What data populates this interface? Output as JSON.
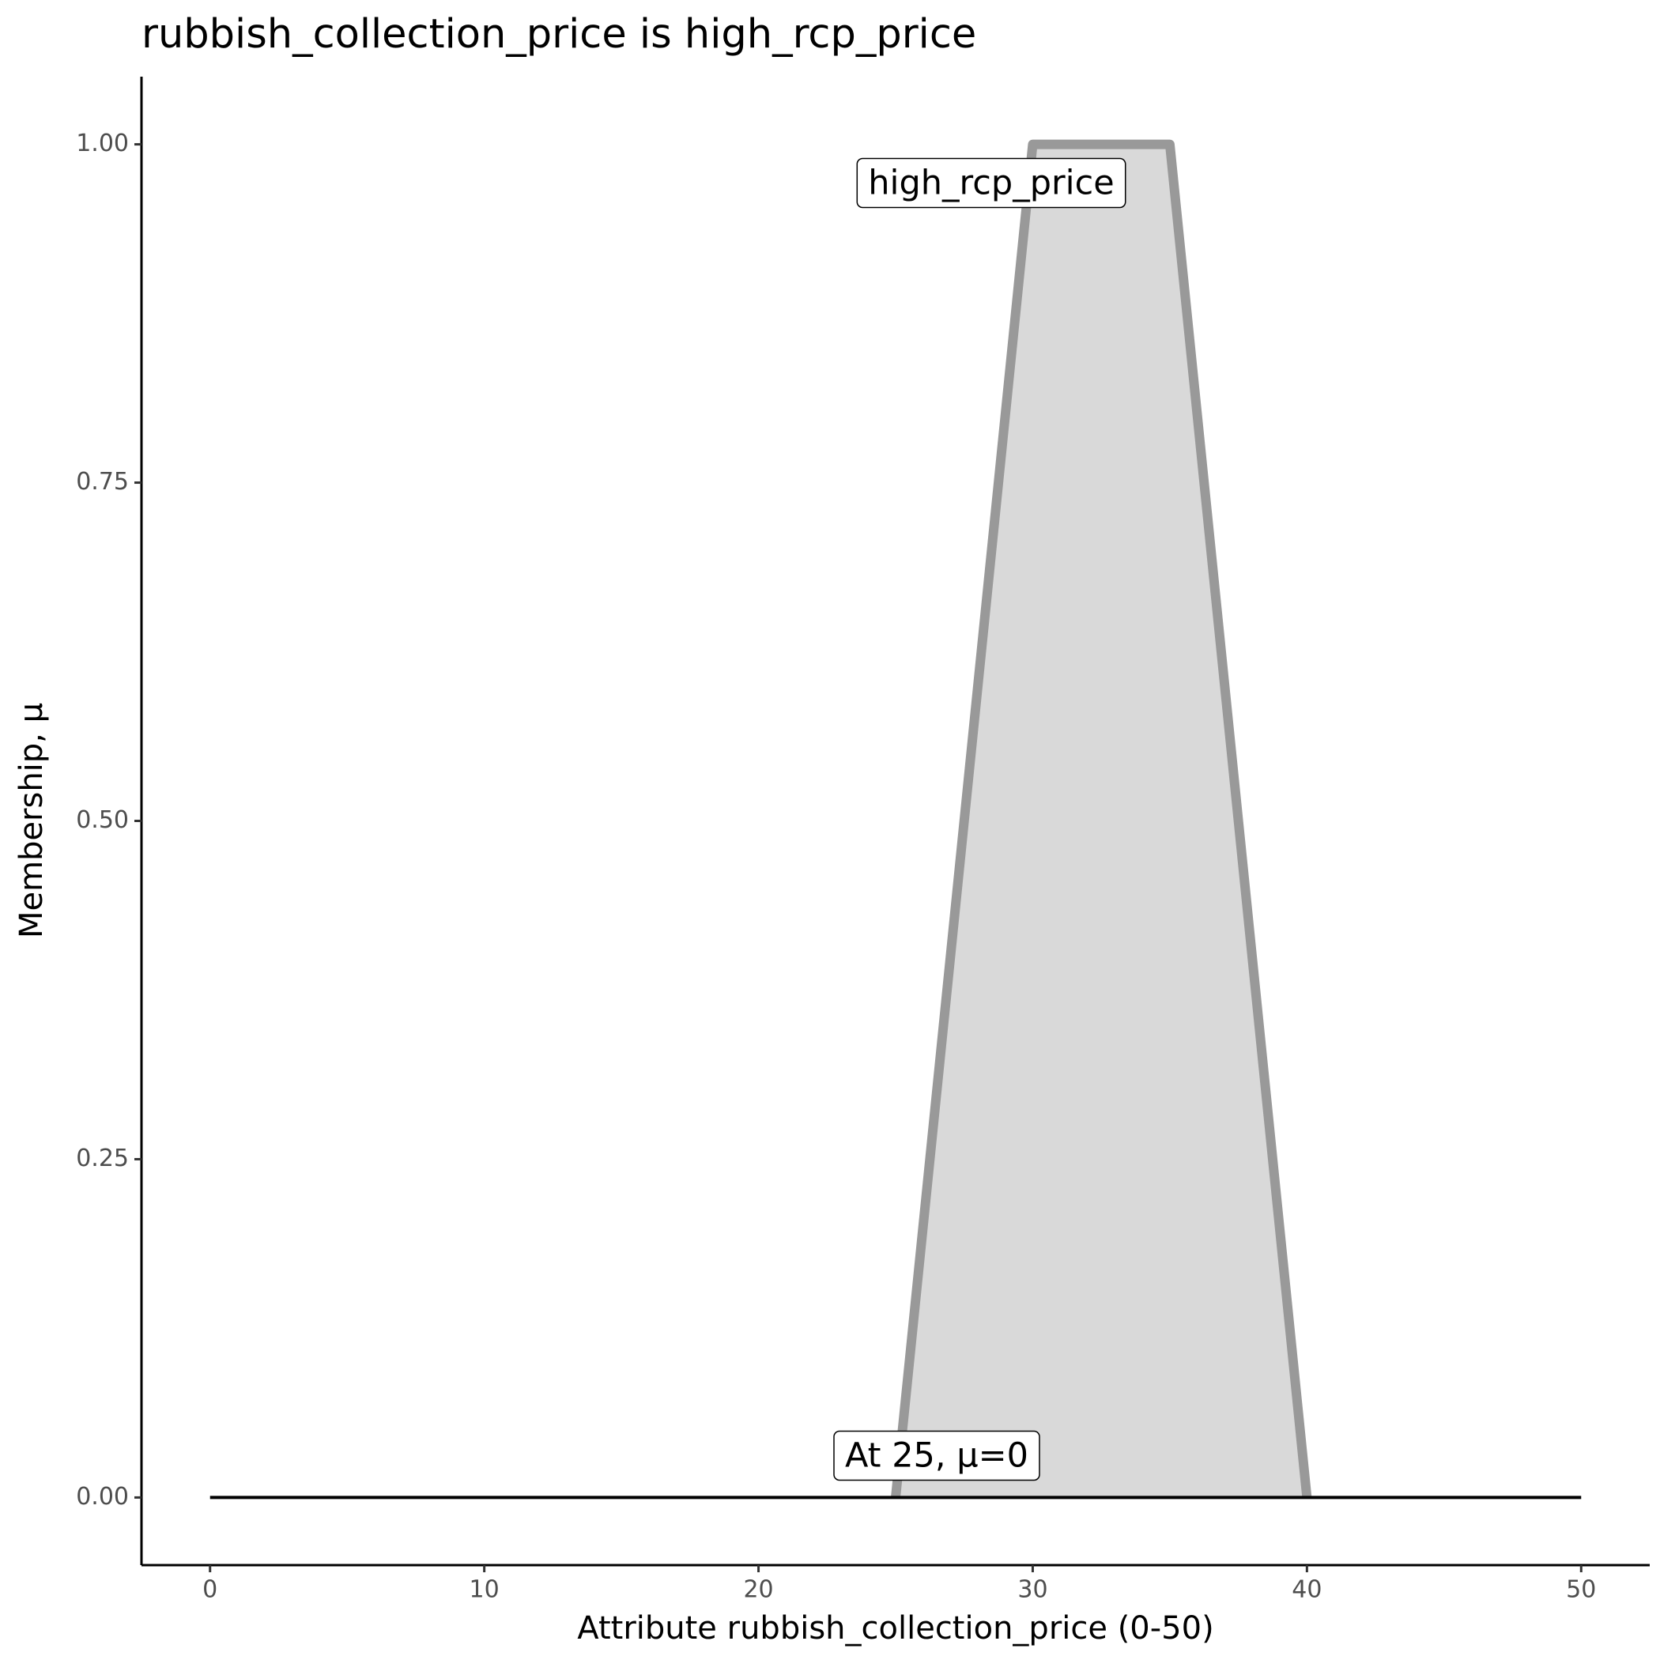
{
  "chart_data": {
    "type": "line",
    "title": "rubbish_collection_price is high_rcp_price",
    "x_label": "Attribute rubbish_collection_price (0-50)",
    "y_label": "Membership, μ",
    "series": [
      {
        "name": "high_rcp_price",
        "color": "#999999",
        "fill": "#d9d9d9",
        "x": [
          25,
          30,
          35,
          40
        ],
        "values": [
          0,
          1,
          1,
          0
        ]
      },
      {
        "color": "#000000",
        "x": [
          0,
          50
        ],
        "values": [
          0,
          0
        ]
      }
    ],
    "annotations": [
      "At 25, μ=0"
    ],
    "xlim": [
      -2.5,
      52.5
    ],
    "xticks": [
      0,
      10,
      20,
      30,
      40,
      50
    ],
    "ylim": [
      -0.05,
      1.05
    ],
    "yticks": [
      {
        "value": 0,
        "label": "0.00"
      },
      {
        "value": 0.25,
        "label": "0.25"
      },
      {
        "value": 0.5,
        "label": "0.50"
      },
      {
        "value": 0.75,
        "label": "0.75"
      },
      {
        "value": 1,
        "label": "1.00"
      }
    ]
  }
}
